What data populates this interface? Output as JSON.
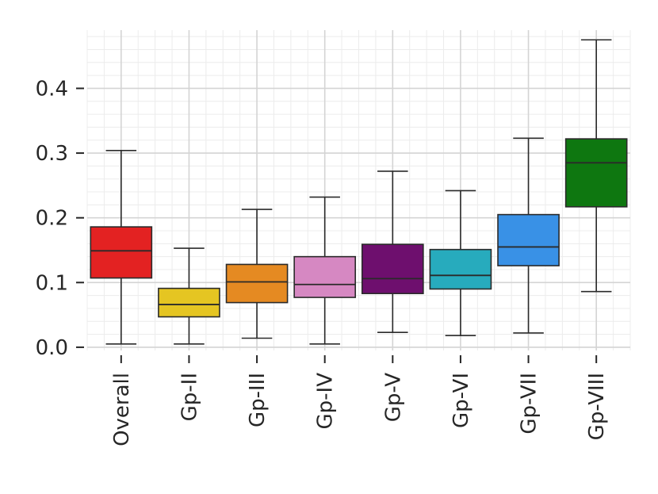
{
  "chart_data": {
    "type": "box",
    "title": "",
    "xlabel": "",
    "ylabel": "",
    "ylim": [
      -0.005,
      0.49
    ],
    "yticks": [
      0.0,
      0.1,
      0.2,
      0.3,
      0.4
    ],
    "ytick_labels": [
      "0.0",
      "0.1",
      "0.2",
      "0.3",
      "0.4"
    ],
    "minor_ytick_step": 0.02,
    "grid": true,
    "categories": [
      "Overall",
      "Gp-II",
      "Gp-III",
      "Gp-IV",
      "Gp-V",
      "Gp-VI",
      "Gp-VII",
      "Gp-VIII"
    ],
    "series": [
      {
        "name": "Overall",
        "color": "#e32222",
        "whislo": 0.005,
        "q1": 0.107,
        "median": 0.149,
        "q3": 0.186,
        "whishi": 0.304
      },
      {
        "name": "Gp-II",
        "color": "#e5c522",
        "whislo": 0.005,
        "q1": 0.047,
        "median": 0.066,
        "q3": 0.091,
        "whishi": 0.153
      },
      {
        "name": "Gp-III",
        "color": "#e58a22",
        "whislo": 0.014,
        "q1": 0.069,
        "median": 0.101,
        "q3": 0.128,
        "whishi": 0.213
      },
      {
        "name": "Gp-IV",
        "color": "#d688c2",
        "whislo": 0.005,
        "q1": 0.077,
        "median": 0.097,
        "q3": 0.14,
        "whishi": 0.232
      },
      {
        "name": "Gp-V",
        "color": "#6e0f6e",
        "whislo": 0.023,
        "q1": 0.083,
        "median": 0.106,
        "q3": 0.159,
        "whishi": 0.272
      },
      {
        "name": "Gp-VI",
        "color": "#27abbd",
        "whislo": 0.018,
        "q1": 0.09,
        "median": 0.111,
        "q3": 0.151,
        "whishi": 0.242
      },
      {
        "name": "Gp-VII",
        "color": "#3991e6",
        "whislo": 0.022,
        "q1": 0.126,
        "median": 0.155,
        "q3": 0.205,
        "whishi": 0.323
      },
      {
        "name": "Gp-VIII",
        "color": "#0e7710",
        "whislo": 0.086,
        "q1": 0.217,
        "median": 0.285,
        "q3": 0.322,
        "whishi": 0.475
      }
    ]
  }
}
